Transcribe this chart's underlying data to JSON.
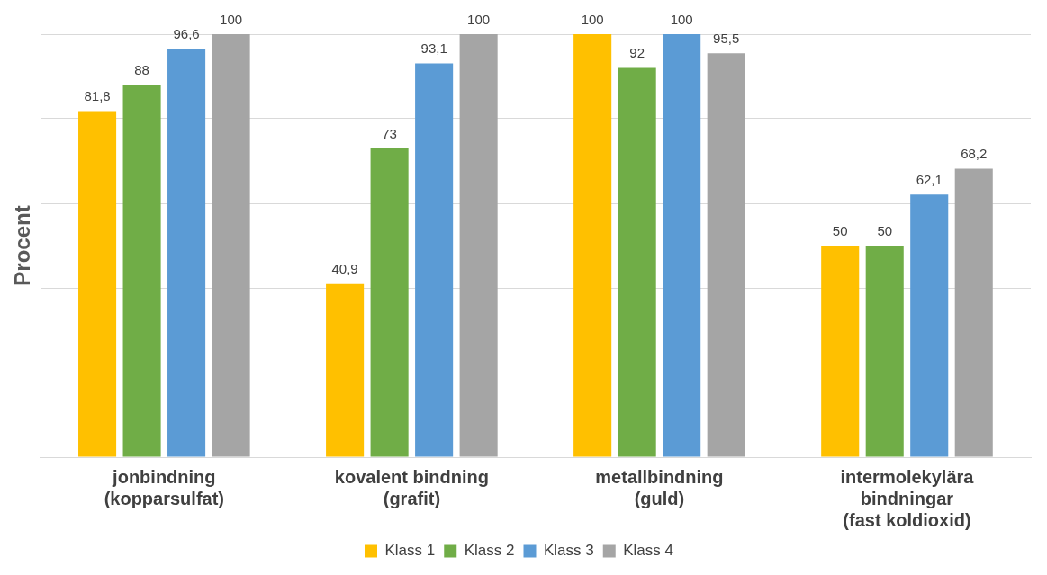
{
  "chart_data": {
    "type": "bar",
    "ylabel": "Procent",
    "categories": [
      "jonbindning\n(kopparsulfat)",
      "kovalent bindning\n(grafit)",
      "metallbindning\n(guld)",
      "intermolekylära\nbindningar\n(fast koldioxid)"
    ],
    "series": [
      {
        "name": "Klass 1",
        "color": "#ffc000",
        "values": [
          81.8,
          40.9,
          100,
          50
        ],
        "value_labels": [
          "81,8",
          "40,9",
          "100",
          "50"
        ]
      },
      {
        "name": "Klass 2",
        "color": "#70ad47",
        "values": [
          88,
          73,
          92,
          50
        ],
        "value_labels": [
          "88",
          "73",
          "92",
          "50"
        ]
      },
      {
        "name": "Klass 3",
        "color": "#5b9bd5",
        "values": [
          96.6,
          93.1,
          100,
          62.1
        ],
        "value_labels": [
          "96,6",
          "93,1",
          "100",
          "62,1"
        ]
      },
      {
        "name": "Klass 4",
        "color": "#a5a5a5",
        "values": [
          100,
          100,
          95.5,
          68.2
        ],
        "value_labels": [
          "100",
          "100",
          "95,5",
          "68,2"
        ]
      }
    ],
    "ylim": [
      0,
      100
    ],
    "yticks": [
      {
        "value": 0,
        "label": null
      },
      {
        "value": 20,
        "label": null
      },
      {
        "value": 40,
        "label": null
      },
      {
        "value": 60,
        "label": null
      },
      {
        "value": 80,
        "label": null
      },
      {
        "value": 100,
        "label": null
      }
    ],
    "grid": "y",
    "tick_labels": "x",
    "legend": "bottom"
  }
}
